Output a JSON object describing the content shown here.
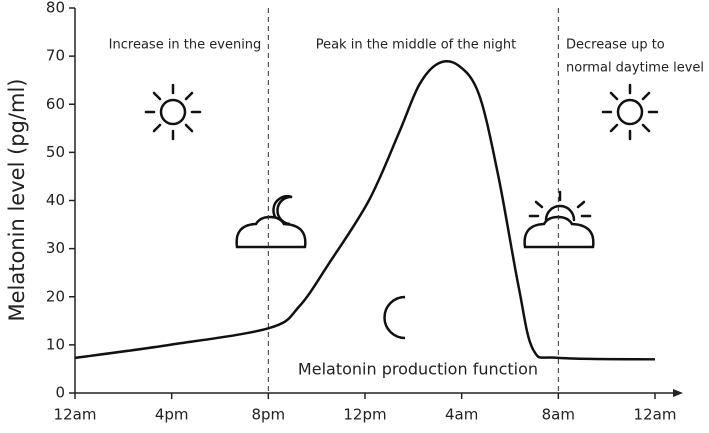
{
  "chart_data": {
    "type": "line",
    "ylabel": "Melatonin level (pg/ml)",
    "x": [
      0,
      0.98,
      2.01,
      2.32,
      2.63,
      3.04,
      3.35,
      3.56,
      3.76,
      3.97,
      4.18,
      4.38,
      4.59,
      4.74,
      5.0,
      6.0
    ],
    "series": [
      {
        "name": "Melatonin production function",
        "color": "#111111",
        "values": [
          7.3,
          10,
          13.5,
          18,
          27,
          40,
          54,
          64,
          68.5,
          68,
          62,
          45,
          22,
          9,
          7.3,
          7
        ]
      }
    ],
    "xlim": [
      0,
      6
    ],
    "xticks": [
      {
        "value": 0,
        "label": "12am"
      },
      {
        "value": 1,
        "label": "4pm"
      },
      {
        "value": 2,
        "label": "8pm"
      },
      {
        "value": 3,
        "label": "12pm"
      },
      {
        "value": 4,
        "label": "4am"
      },
      {
        "value": 5,
        "label": "8am"
      },
      {
        "value": 6,
        "label": "12am"
      }
    ],
    "ylim": [
      0,
      80
    ],
    "yticks": [
      0,
      10,
      20,
      30,
      40,
      50,
      60,
      70,
      80
    ],
    "vlines": [
      2,
      5
    ],
    "annotations": [
      "Increase in the evening",
      "Peak in the middle of the night",
      "Decrease up to",
      "normal daytime level"
    ],
    "grid": false
  }
}
